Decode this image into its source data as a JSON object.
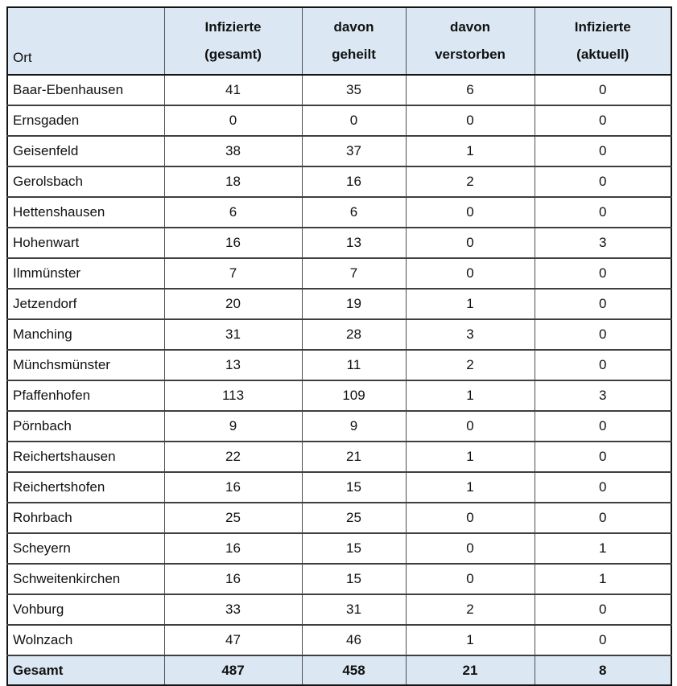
{
  "colors": {
    "header_bg": "#dbe8f4",
    "footer_bg": "#dbe8f4",
    "outer_border": "#141414",
    "inner_border": "#4d4d4d",
    "text": "#111111"
  },
  "table": {
    "header": {
      "ort_label": "Ort",
      "columns": [
        {
          "line1": "Infizierte",
          "line2": "(gesamt)"
        },
        {
          "line1": "davon",
          "line2": "geheilt"
        },
        {
          "line1": "davon",
          "line2": "verstorben"
        },
        {
          "line1": "Infizierte",
          "line2": "(aktuell)"
        }
      ]
    },
    "rows": [
      {
        "ort": "Baar-Ebenhausen",
        "values": [
          "41",
          "35",
          "6",
          "0"
        ]
      },
      {
        "ort": "Ernsgaden",
        "values": [
          "0",
          "0",
          "0",
          "0"
        ]
      },
      {
        "ort": "Geisenfeld",
        "values": [
          "38",
          "37",
          "1",
          "0"
        ]
      },
      {
        "ort": "Gerolsbach",
        "values": [
          "18",
          "16",
          "2",
          "0"
        ]
      },
      {
        "ort": "Hettenshausen",
        "values": [
          "6",
          "6",
          "0",
          "0"
        ]
      },
      {
        "ort": "Hohenwart",
        "values": [
          "16",
          "13",
          "0",
          "3"
        ]
      },
      {
        "ort": "Ilmmünster",
        "values": [
          "7",
          "7",
          "0",
          "0"
        ]
      },
      {
        "ort": "Jetzendorf",
        "values": [
          "20",
          "19",
          "1",
          "0"
        ]
      },
      {
        "ort": "Manching",
        "values": [
          "31",
          "28",
          "3",
          "0"
        ]
      },
      {
        "ort": "Münchsmünster",
        "values": [
          "13",
          "11",
          "2",
          "0"
        ]
      },
      {
        "ort": "Pfaffenhofen",
        "values": [
          "113",
          "109",
          "1",
          "3"
        ]
      },
      {
        "ort": "Pörnbach",
        "values": [
          "9",
          "9",
          "0",
          "0"
        ]
      },
      {
        "ort": "Reichertshausen",
        "values": [
          "22",
          "21",
          "1",
          "0"
        ]
      },
      {
        "ort": "Reichertshofen",
        "values": [
          "16",
          "15",
          "1",
          "0"
        ]
      },
      {
        "ort": "Rohrbach",
        "values": [
          "25",
          "25",
          "0",
          "0"
        ]
      },
      {
        "ort": "Scheyern",
        "values": [
          "16",
          "15",
          "0",
          "1"
        ]
      },
      {
        "ort": "Schweitenkirchen",
        "values": [
          "16",
          "15",
          "0",
          "1"
        ]
      },
      {
        "ort": "Vohburg",
        "values": [
          "33",
          "31",
          "2",
          "0"
        ]
      },
      {
        "ort": "Wolnzach",
        "values": [
          "47",
          "46",
          "1",
          "0"
        ]
      }
    ],
    "footer": {
      "ort": "Gesamt",
      "values": [
        "487",
        "458",
        "21",
        "8"
      ]
    }
  },
  "chart_data": {
    "type": "table",
    "title": "",
    "columns": [
      "Ort",
      "Infizierte (gesamt)",
      "davon geheilt",
      "davon verstorben",
      "Infizierte (aktuell)"
    ],
    "rows": [
      [
        "Baar-Ebenhausen",
        41,
        35,
        6,
        0
      ],
      [
        "Ernsgaden",
        0,
        0,
        0,
        0
      ],
      [
        "Geisenfeld",
        38,
        37,
        1,
        0
      ],
      [
        "Gerolsbach",
        18,
        16,
        2,
        0
      ],
      [
        "Hettenshausen",
        6,
        6,
        0,
        0
      ],
      [
        "Hohenwart",
        16,
        13,
        0,
        3
      ],
      [
        "Ilmmünster",
        7,
        7,
        0,
        0
      ],
      [
        "Jetzendorf",
        20,
        19,
        1,
        0
      ],
      [
        "Manching",
        31,
        28,
        3,
        0
      ],
      [
        "Münchsmünster",
        13,
        11,
        2,
        0
      ],
      [
        "Pfaffenhofen",
        113,
        109,
        1,
        3
      ],
      [
        "Pörnbach",
        9,
        9,
        0,
        0
      ],
      [
        "Reichertshausen",
        22,
        21,
        1,
        0
      ],
      [
        "Reichertshofen",
        16,
        15,
        1,
        0
      ],
      [
        "Rohrbach",
        25,
        25,
        0,
        0
      ],
      [
        "Scheyern",
        16,
        15,
        0,
        1
      ],
      [
        "Schweitenkirchen",
        16,
        15,
        0,
        1
      ],
      [
        "Vohburg",
        33,
        31,
        2,
        0
      ],
      [
        "Wolnzach",
        47,
        46,
        1,
        0
      ],
      [
        "Gesamt",
        487,
        458,
        21,
        8
      ]
    ]
  }
}
